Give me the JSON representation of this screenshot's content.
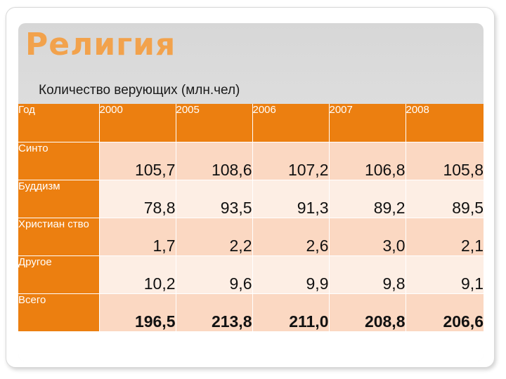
{
  "slide": {
    "title": "Религия",
    "subtitle": "Количество верующих (млн.чел)"
  },
  "table": {
    "header": [
      "Год",
      "2000",
      "2005",
      "2006",
      "2007",
      "2008"
    ],
    "rows": [
      {
        "label": "Синто",
        "values": [
          "105,7",
          "108,6",
          "107,2",
          "106,8",
          "105,8"
        ]
      },
      {
        "label": "Буддизм",
        "values": [
          "78,8",
          "93,5",
          "91,3",
          "89,2",
          "89,5"
        ]
      },
      {
        "label": "Христиан ство",
        "values": [
          "1,7",
          "2,2",
          "2,6",
          "3,0",
          "2,1"
        ]
      },
      {
        "label": "Другое",
        "values": [
          "10,2",
          "9,6",
          "9,9",
          "9,8",
          "9,1"
        ]
      },
      {
        "label": "Всего",
        "values": [
          "196,5",
          "213,8",
          "211,0",
          "208,8",
          "206,6"
        ]
      }
    ]
  },
  "colors": {
    "title": "#f2a24c",
    "header_fill": "#ec7f10",
    "row_fill": "#fbd8c2",
    "row_fill_alt": "#fdeee4"
  }
}
